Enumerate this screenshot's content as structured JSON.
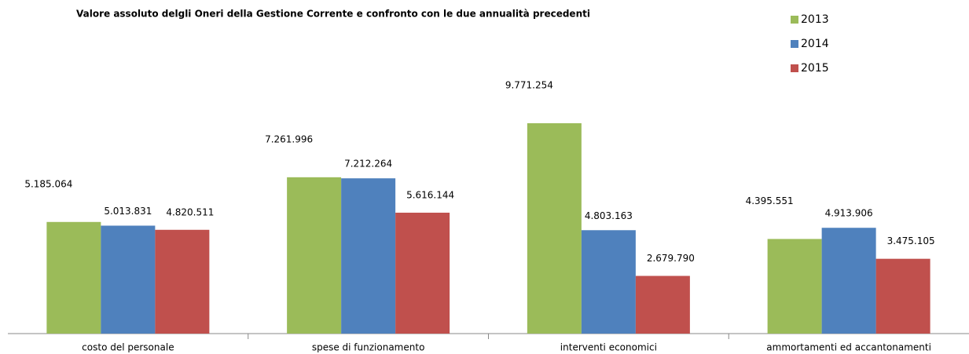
{
  "chart_data": {
    "type": "bar",
    "title": "Valore assoluto delgli Oneri della Gestione Corrente e  confronto  con  le due annualità precedenti",
    "categories": [
      "costo del personale",
      "spese di funzionamento",
      "interventi economici",
      "ammortamenti ed accantonamenti"
    ],
    "series": [
      {
        "name": "2013",
        "color": "#9bbb59",
        "values": [
          5185064,
          7261996,
          9771254,
          4395551
        ],
        "value_labels": [
          "5.185.064",
          "7.261.996",
          "9.771.254",
          "4.395.551"
        ]
      },
      {
        "name": "2014",
        "color": "#4f81bd",
        "values": [
          5013831,
          7212264,
          4803163,
          4913906
        ],
        "value_labels": [
          "5.013.831",
          "7.212.264",
          "4.803.163",
          "4.913.906"
        ]
      },
      {
        "name": "2015",
        "color": "#c0504d",
        "values": [
          4820511,
          5616144,
          2679790,
          3475105
        ],
        "value_labels": [
          "4.820.511",
          "5.616.144",
          "2.679.790",
          "3.475.105"
        ]
      }
    ],
    "legend": "top-right"
  }
}
